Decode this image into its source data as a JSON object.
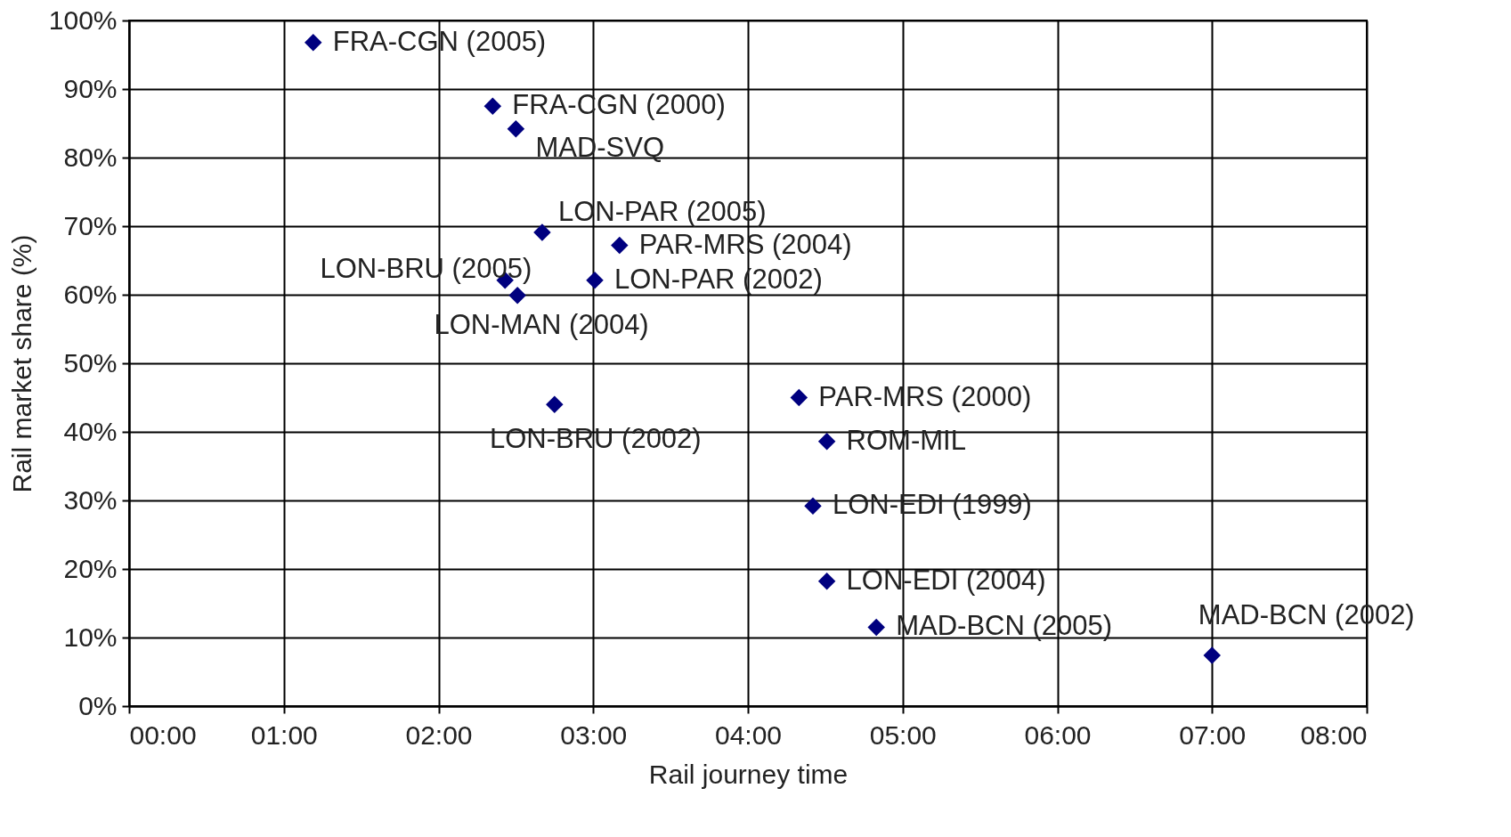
{
  "chart_data": {
    "type": "scatter",
    "xlabel": "Rail journey time",
    "ylabel": "Rail market share (%)",
    "x": [
      1.19,
      2.35,
      2.5,
      2.67,
      3.17,
      2.43,
      2.51,
      3.01,
      2.75,
      4.33,
      4.51,
      4.42,
      4.51,
      4.83,
      7.0
    ],
    "series": [
      {
        "color": "#00007f",
        "values": [
          96.8,
          87.5,
          84.2,
          69.1,
          67.2,
          62.1,
          59.9,
          62.1,
          44.0,
          45.0,
          38.6,
          29.2,
          18.2,
          11.5,
          7.4
        ]
      }
    ],
    "xlim": [
      0,
      8
    ],
    "ylim": [
      0,
      100
    ],
    "xticks": [
      {
        "value": 0,
        "label": "00:00"
      },
      {
        "value": 1,
        "label": "01:00"
      },
      {
        "value": 2,
        "label": "02:00"
      },
      {
        "value": 3,
        "label": "03:00"
      },
      {
        "value": 4,
        "label": "04:00"
      },
      {
        "value": 5,
        "label": "05:00"
      },
      {
        "value": 6,
        "label": "06:00"
      },
      {
        "value": 7,
        "label": "07:00"
      },
      {
        "value": 8,
        "label": "08:00"
      }
    ],
    "yticks": [
      {
        "value": 0,
        "label": "0%"
      },
      {
        "value": 10,
        "label": "10%"
      },
      {
        "value": 20,
        "label": "20%"
      },
      {
        "value": 30,
        "label": "30%"
      },
      {
        "value": 40,
        "label": "40%"
      },
      {
        "value": 50,
        "label": "50%"
      },
      {
        "value": 60,
        "label": "60%"
      },
      {
        "value": 70,
        "label": "70%"
      },
      {
        "value": 80,
        "label": "80%"
      },
      {
        "value": 90,
        "label": "90%"
      },
      {
        "value": 100,
        "label": "100%"
      }
    ],
    "grid": true,
    "marker": "diamond",
    "annotations": [
      {
        "text": "FRA-CGN (2005)",
        "x": 1.19,
        "y": 96.8
      },
      {
        "text": "FRA-CGN (2000)",
        "x": 2.35,
        "y": 87.5
      },
      {
        "text": "MAD-SVQ",
        "x": 2.5,
        "y": 84.2
      },
      {
        "text": "LON-PAR (2005)",
        "x": 2.67,
        "y": 69.1
      },
      {
        "text": "PAR-MRS (2004)",
        "x": 3.17,
        "y": 67.2
      },
      {
        "text": "LON-BRU (2005)",
        "x": 2.43,
        "y": 62.1
      },
      {
        "text": "LON-MAN (2004)",
        "x": 2.51,
        "y": 59.9
      },
      {
        "text": "LON-PAR (2002)",
        "x": 3.01,
        "y": 62.1
      },
      {
        "text": "LON-BRU (2002)",
        "x": 2.75,
        "y": 44.0
      },
      {
        "text": "PAR-MRS (2000)",
        "x": 4.33,
        "y": 45.0
      },
      {
        "text": "ROM-MIL",
        "x": 4.51,
        "y": 38.6
      },
      {
        "text": "LON-EDI (1999)",
        "x": 4.42,
        "y": 29.2
      },
      {
        "text": "LON-EDI (2004)",
        "x": 4.51,
        "y": 18.2
      },
      {
        "text": "MAD-BCN (2005)",
        "x": 4.83,
        "y": 11.5
      },
      {
        "text": "MAD-BCN (2002)",
        "x": 7.0,
        "y": 7.4
      }
    ]
  }
}
